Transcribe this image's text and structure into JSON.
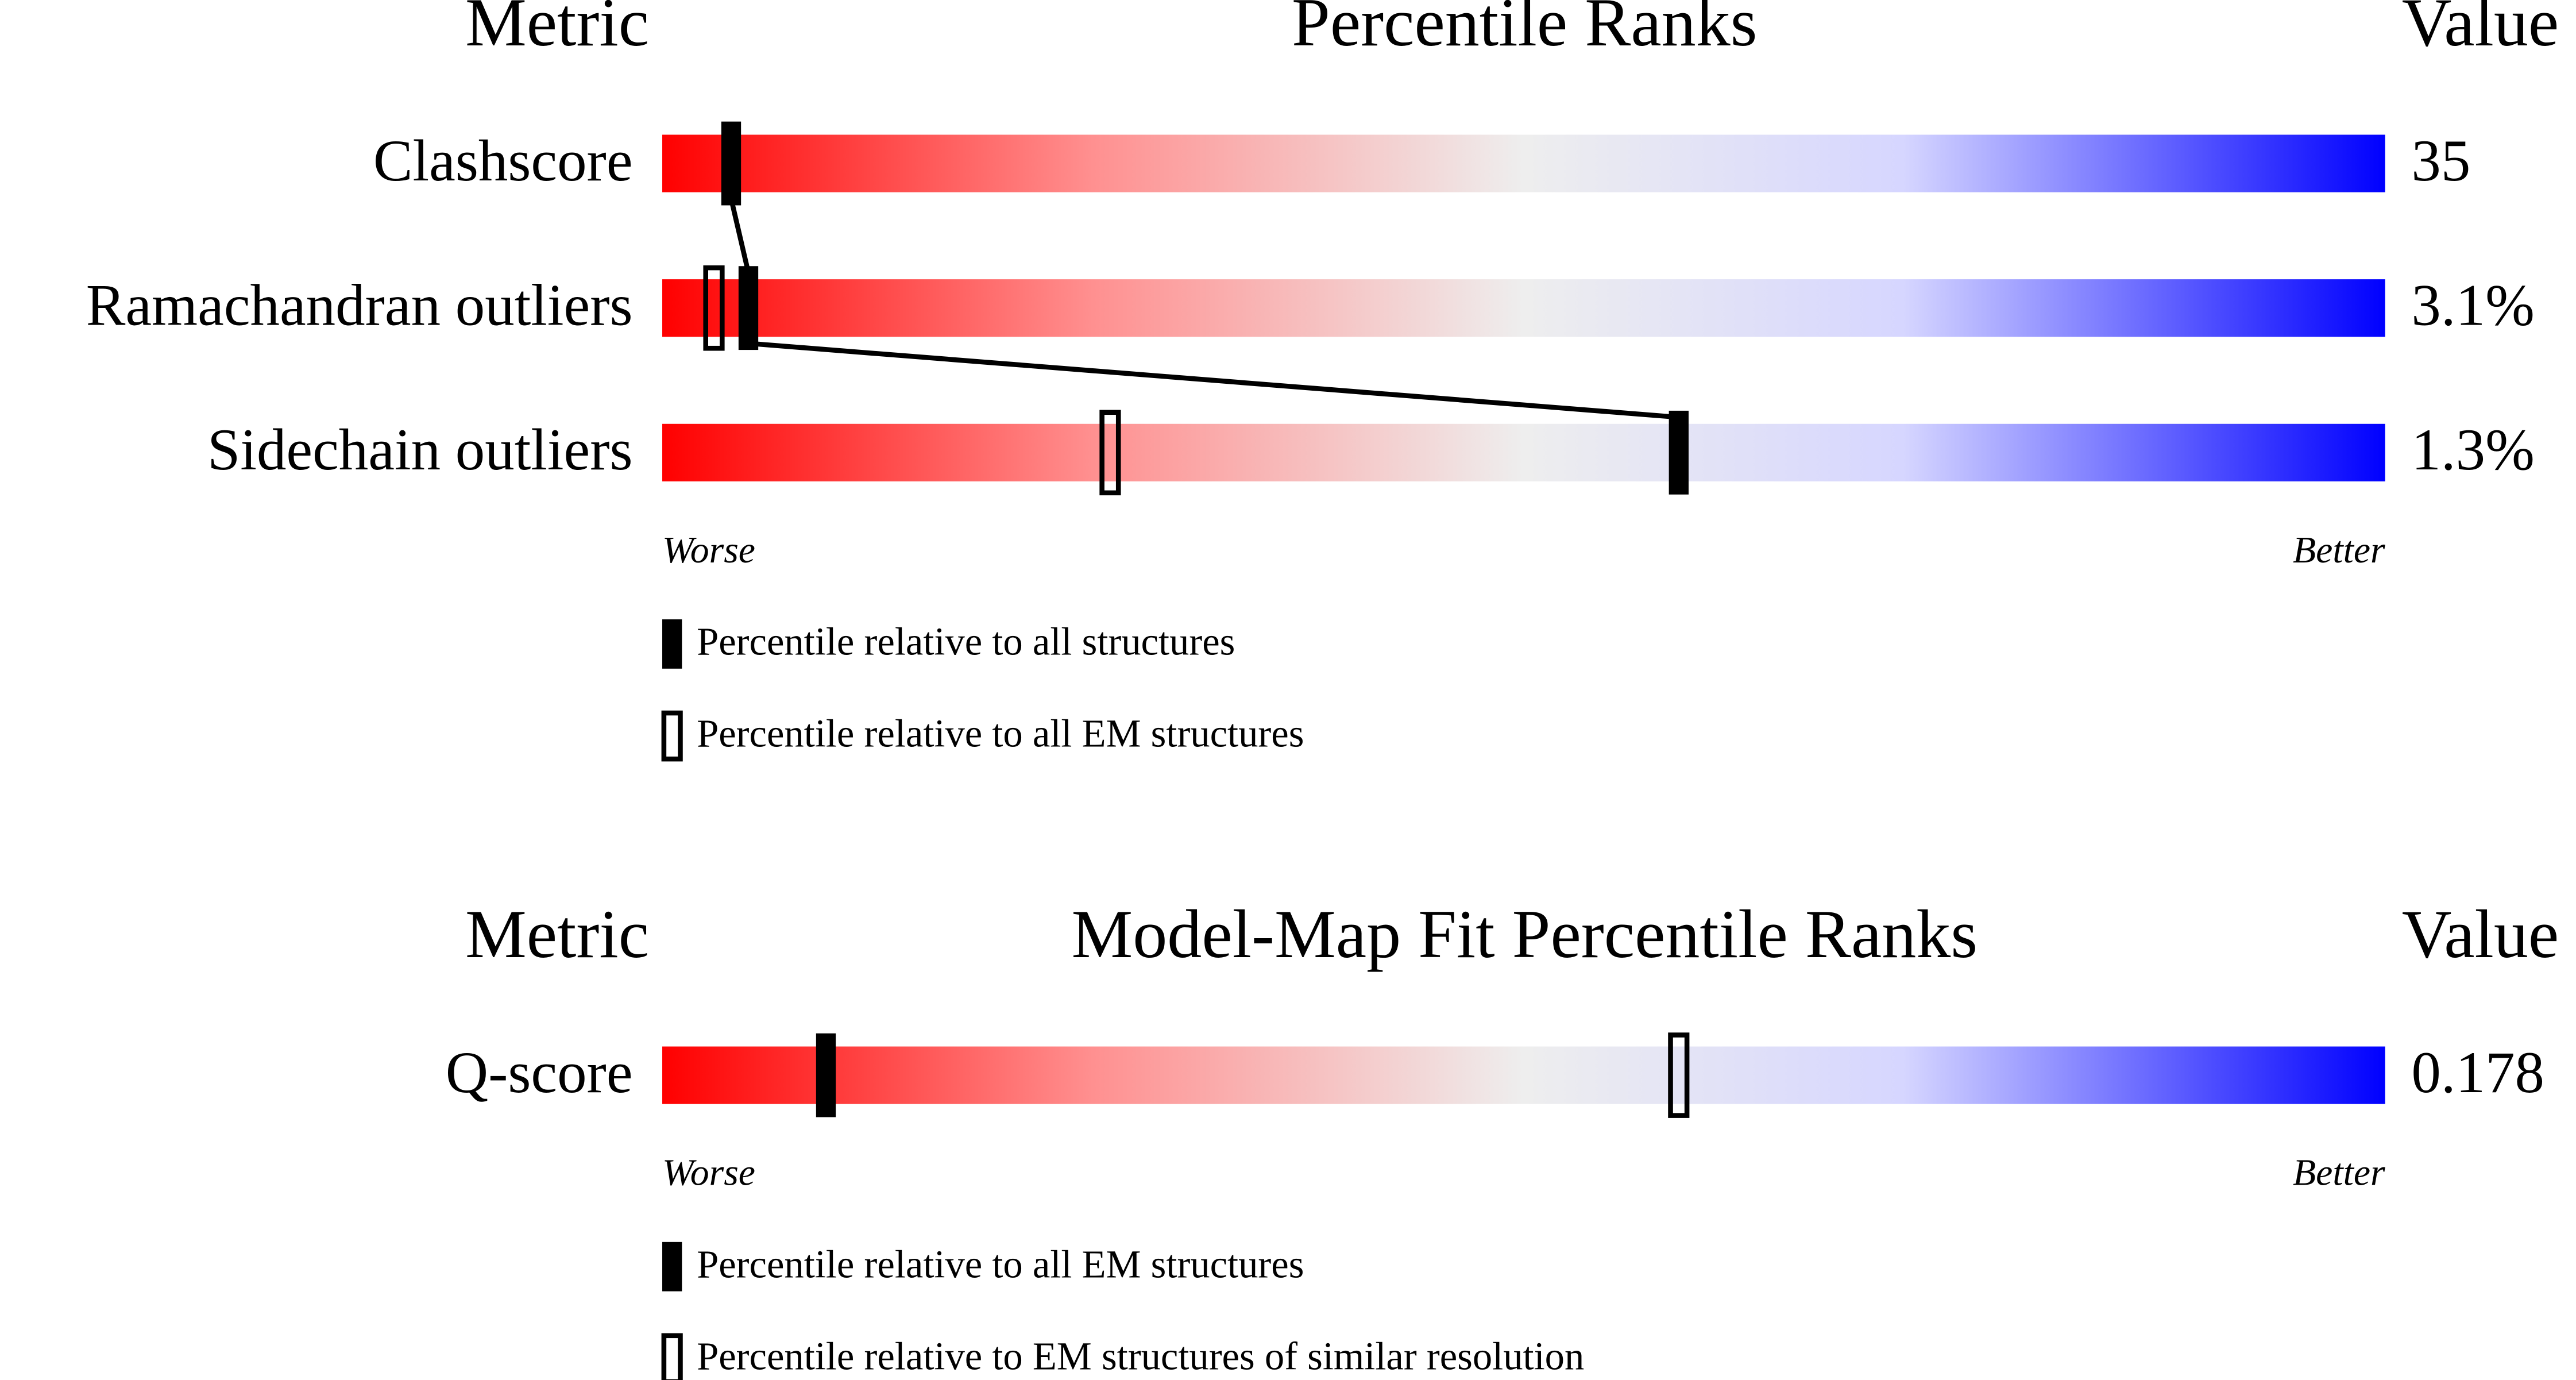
{
  "panels": [
    {
      "header": {
        "metric": "Metric",
        "title": "Percentile Ranks",
        "value": "Value"
      },
      "xlim": [
        0,
        100
      ],
      "rows": [
        {
          "metric": "Clashscore",
          "value": "35",
          "ranks": [
            4
          ]
        },
        {
          "metric": "Ramachandran outliers",
          "value": "3.1%",
          "ranks": [
            5,
            3
          ]
        },
        {
          "metric": "Sidechain outliers",
          "value": "1.3%",
          "ranks": [
            59,
            26
          ]
        }
      ],
      "worse": "Worse",
      "better": "Better",
      "legend": [
        "Percentile relative to all structures",
        "Percentile relative to all EM structures"
      ]
    },
    {
      "header": {
        "metric": "Metric",
        "title": "Model-Map Fit Percentile Ranks",
        "value": "Value"
      },
      "xlim": [
        0,
        100
      ],
      "rows": [
        {
          "metric": "Q-score",
          "value": "0.178",
          "ranks": [
            9.5,
            59
          ]
        }
      ],
      "worse": "Worse",
      "better": "Better",
      "legend": [
        "Percentile relative to all EM structures",
        "Percentile relative to EM structures of similar resolution"
      ]
    }
  ]
}
